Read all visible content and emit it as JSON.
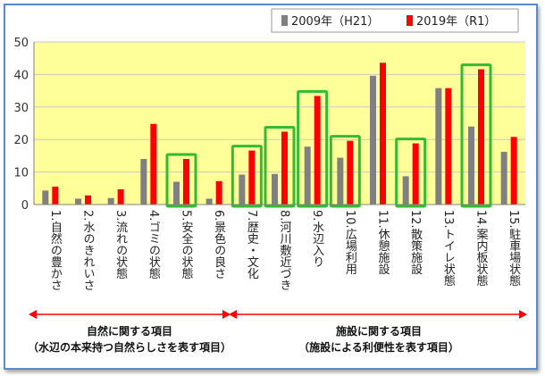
{
  "chart_data": {
    "type": "bar",
    "ylim": [
      0,
      50
    ],
    "yticks": [
      "0",
      "10",
      "20",
      "30",
      "40",
      "50"
    ],
    "categories": [
      "1.自然の豊かさ",
      "2.水のきれいさ",
      "3.流れの状態",
      "4.ゴミの状態",
      "5.安全の状態",
      "6.景色の良さ",
      "7.歴史・文化",
      "8.河川敷近づき",
      "9.水辺入り",
      "10.広場利用",
      "11.休憩施設",
      "12.散策施設",
      "13.トイレ状態",
      "14.案内板状態",
      "15.駐車場状態"
    ],
    "series": [
      {
        "name": "2009年（H21）",
        "color": "#808080",
        "values": [
          4.3,
          1.8,
          2.0,
          14.0,
          7.0,
          1.8,
          9.2,
          9.4,
          17.8,
          14.4,
          39.6,
          8.7,
          35.8,
          24.0,
          16.2
        ]
      },
      {
        "name": "2019年（R1）",
        "color": "#ff0000",
        "values": [
          5.5,
          2.8,
          4.7,
          24.8,
          14.0,
          7.2,
          16.6,
          22.4,
          33.4,
          19.6,
          43.6,
          18.8,
          35.8,
          41.6,
          20.8
        ]
      }
    ],
    "highlighted_indices": [
      4,
      6,
      7,
      8,
      9,
      11,
      13
    ],
    "groups": [
      {
        "label": "自然に関する項目",
        "sublabel": "（水辺の本来持つ自然らしさを表す項目）",
        "from": 0,
        "to": 5
      },
      {
        "label": "施設に関する項目",
        "sublabel": "（施設による利便性を表す項目）",
        "from": 6,
        "to": 14
      }
    ],
    "colors": {
      "plot_bg": "#ffff99",
      "highlight": "#33bb33",
      "arrow": "#ff0000",
      "frame": "#5b8bc9"
    }
  }
}
